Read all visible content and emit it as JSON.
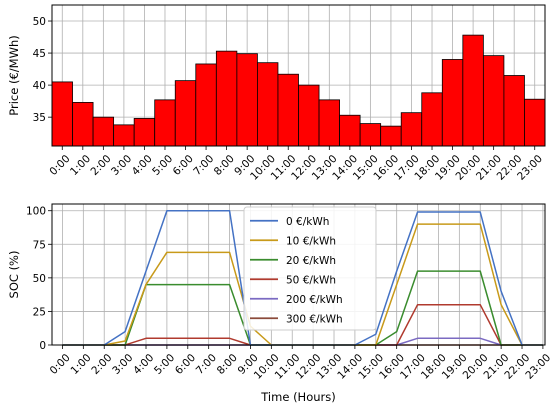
{
  "chart_data": [
    {
      "type": "bar",
      "ylabel": "Price (€/MWh)",
      "xlabel": "",
      "categories": [
        "0:00",
        "1:00",
        "2:00",
        "3:00",
        "4:00",
        "5:00",
        "6:00",
        "7:00",
        "8:00",
        "9:00",
        "10:00",
        "11:00",
        "12:00",
        "13:00",
        "14:00",
        "15:00",
        "16:00",
        "17:00",
        "18:00",
        "19:00",
        "20:00",
        "21:00",
        "22:00",
        "23:00"
      ],
      "values": [
        40.5,
        37.3,
        35.0,
        33.8,
        34.8,
        37.7,
        40.7,
        43.3,
        45.3,
        44.9,
        43.5,
        41.7,
        40.0,
        37.7,
        35.3,
        34.0,
        33.6,
        35.7,
        38.8,
        44.0,
        47.8,
        44.6,
        41.5,
        37.8
      ],
      "ylim": [
        30.5,
        52.5
      ],
      "yticks": [
        35,
        40,
        45,
        50
      ],
      "bar_color": "#ff0000",
      "edge_color": "#000000",
      "grid": true
    },
    {
      "type": "line",
      "ylabel": "SOC (%)",
      "xlabel": "Time (Hours)",
      "x": [
        "0:00",
        "1:00",
        "2:00",
        "3:00",
        "4:00",
        "5:00",
        "6:00",
        "7:00",
        "8:00",
        "9:00",
        "10:00",
        "11:00",
        "12:00",
        "13:00",
        "14:00",
        "15:00",
        "16:00",
        "17:00",
        "18:00",
        "19:00",
        "20:00",
        "21:00",
        "22:00",
        "23:00"
      ],
      "ylim": [
        0,
        105
      ],
      "yticks": [
        0,
        25,
        50,
        75,
        100
      ],
      "grid": true,
      "legend_position": "center",
      "series": [
        {
          "name": "0 €/kWh",
          "color": "#4472c4",
          "values": [
            0,
            0,
            0,
            10,
            55,
            100,
            100,
            100,
            100,
            0,
            0,
            0,
            0,
            0,
            0,
            8,
            55,
            99,
            99,
            99,
            99,
            40,
            0,
            0
          ]
        },
        {
          "name": "10 €/kWh",
          "color": "#c89a1a",
          "values": [
            0,
            0,
            0,
            3,
            45,
            69,
            69,
            69,
            69,
            14,
            0,
            0,
            0,
            0,
            0,
            0,
            45,
            90,
            90,
            90,
            90,
            30,
            0,
            0
          ]
        },
        {
          "name": "20 €/kWh",
          "color": "#3a8c2e",
          "values": [
            0,
            0,
            0,
            0,
            45,
            45,
            45,
            45,
            45,
            0,
            0,
            0,
            0,
            0,
            0,
            0,
            10,
            55,
            55,
            55,
            55,
            0,
            0,
            0
          ]
        },
        {
          "name": "50 €/kWh",
          "color": "#b03a2e",
          "values": [
            0,
            0,
            0,
            0,
            5,
            5,
            5,
            5,
            5,
            0,
            0,
            0,
            0,
            0,
            0,
            0,
            0,
            30,
            30,
            30,
            30,
            0,
            0,
            0
          ]
        },
        {
          "name": "200 €/kWh",
          "color": "#7b6ac2",
          "values": [
            0,
            0,
            0,
            0,
            0,
            0,
            0,
            0,
            0,
            0,
            0,
            0,
            0,
            0,
            0,
            0,
            0,
            5,
            5,
            5,
            5,
            0,
            0,
            0
          ]
        },
        {
          "name": "300 €/kWh",
          "color": "#8b4a3a",
          "values": [
            0,
            0,
            0,
            0,
            0,
            0,
            0,
            0,
            0,
            0,
            0,
            0,
            0,
            0,
            0,
            0,
            0,
            0,
            0,
            0,
            0,
            0,
            0,
            0
          ]
        }
      ]
    }
  ]
}
